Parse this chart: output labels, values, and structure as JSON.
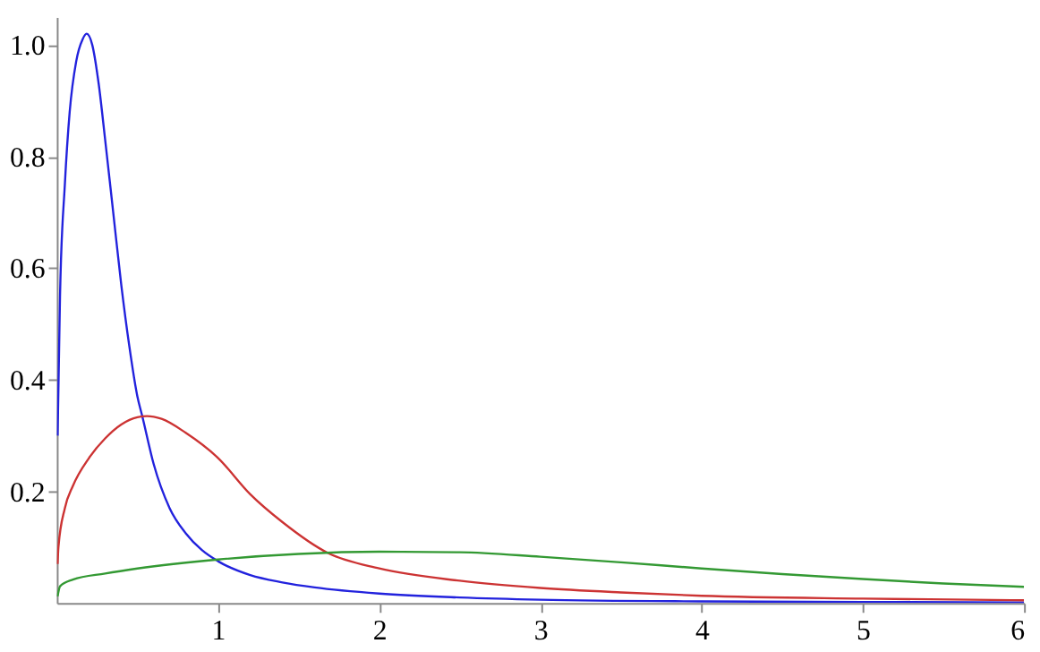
{
  "chart_data": {
    "type": "line",
    "xlim": [
      0,
      6
    ],
    "ylim": [
      0,
      1.05
    ],
    "xticks": [
      1,
      2,
      3,
      4,
      5,
      6
    ],
    "yticks": [
      0.2,
      0.4,
      0.6,
      0.8,
      {
        "value": 1,
        "label": "1.0"
      }
    ],
    "grid": false,
    "legend": false,
    "marker": "none",
    "line_style": "solid",
    "series": [
      {
        "color": "#2222dd",
        "x": [
          0.005,
          0.02,
          0.05,
          0.08,
          0.12,
          0.16,
          0.185,
          0.22,
          0.26,
          0.3,
          0.35,
          0.4,
          0.45,
          0.5,
          0.53,
          0.6,
          0.7,
          0.8,
          0.9,
          1.0,
          1.2,
          1.4,
          1.6,
          2.0,
          2.5,
          3,
          4,
          5,
          6
        ],
        "values": [
          0.3,
          0.55,
          0.75,
          0.88,
          0.97,
          1.01,
          1.02,
          1.0,
          0.93,
          0.83,
          0.7,
          0.57,
          0.46,
          0.37,
          0.335,
          0.25,
          0.17,
          0.125,
          0.095,
          0.075,
          0.05,
          0.037,
          0.028,
          0.017,
          0.01,
          0.006,
          0.003,
          0.002,
          0.001
        ]
      },
      {
        "color": "#cc3333",
        "x": [
          0.005,
          0.01,
          0.05,
          0.1,
          0.2,
          0.3,
          0.4,
          0.5,
          0.56,
          0.65,
          0.8,
          1.0,
          1.2,
          1.4,
          1.68,
          2.0,
          2.5,
          3,
          3.5,
          4,
          5,
          6
        ],
        "values": [
          0.07,
          0.1,
          0.17,
          0.21,
          0.26,
          0.295,
          0.32,
          0.333,
          0.335,
          0.33,
          0.305,
          0.26,
          0.195,
          0.145,
          0.09,
          0.062,
          0.04,
          0.027,
          0.019,
          0.013,
          0.008,
          0.005
        ]
      },
      {
        "color": "#339933",
        "x": [
          0.005,
          0.02,
          0.1,
          0.3,
          0.5,
          1.0,
          1.5,
          2.0,
          2.5,
          3,
          3.5,
          4,
          4.5,
          5,
          5.5,
          6
        ],
        "values": [
          0.012,
          0.03,
          0.042,
          0.053,
          0.062,
          0.078,
          0.088,
          0.092,
          0.091,
          0.083,
          0.073,
          0.062,
          0.052,
          0.043,
          0.035,
          0.029
        ]
      }
    ]
  }
}
